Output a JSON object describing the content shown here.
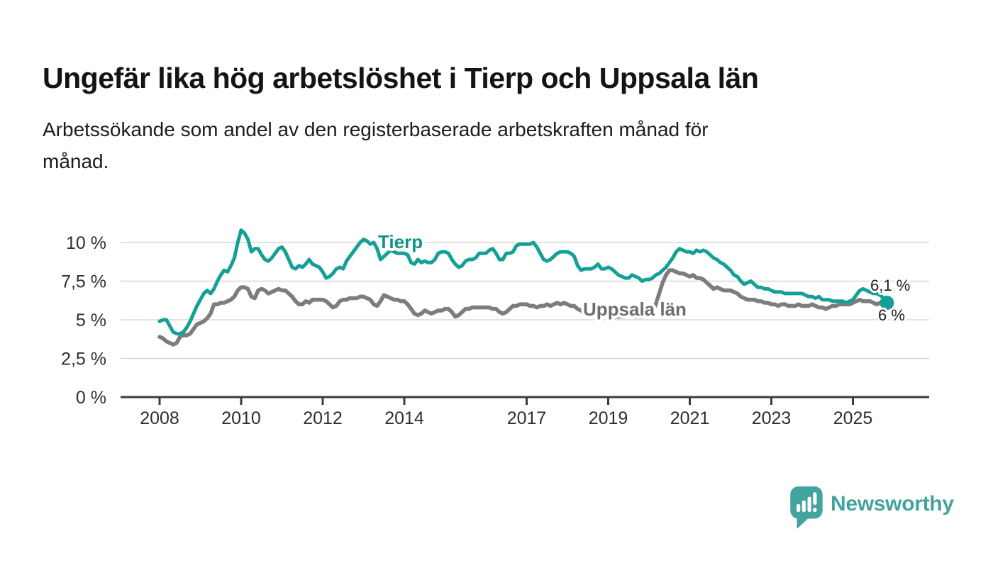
{
  "chart_data": {
    "type": "line",
    "title": "Ungefär lika hög arbetslöshet i Tierp och Uppsala län",
    "subtitle_lines": [
      "Arbetssökande som andel av den registerbaserade arbetskraften månad för",
      "månad."
    ],
    "x_unit": "monthly values, Jan 2008 – late 2025",
    "x_start_year": 2008,
    "x_samples_per_year": 12,
    "xlim": [
      2007.05,
      2026.9
    ],
    "ylim": [
      0,
      11
    ],
    "grid": "horizontal",
    "x_ticks": [
      2008,
      2010,
      2012,
      2014,
      2017,
      2019,
      2021,
      2023,
      2025
    ],
    "y_ticks": [
      0,
      2.5,
      5,
      7.5,
      10
    ],
    "y_tick_labels": [
      "0 %",
      "2,5 %",
      "5 %",
      "7,5 %",
      "10 %"
    ],
    "legend": "inline series labels",
    "series": [
      {
        "name": "Tierp",
        "color": "#14A096",
        "label_color": "#0D9588",
        "end_label": "6,1 %",
        "end_value": 6.1,
        "values": [
          4.9,
          5.0,
          5.0,
          4.6,
          4.2,
          4.1,
          4.1,
          4.2,
          4.5,
          4.9,
          5.4,
          5.9,
          6.3,
          6.7,
          6.9,
          6.7,
          7.0,
          7.5,
          7.9,
          8.2,
          8.1,
          8.5,
          9.0,
          10.0,
          10.8,
          10.6,
          10.2,
          9.4,
          9.6,
          9.6,
          9.2,
          8.9,
          8.8,
          9.0,
          9.3,
          9.6,
          9.7,
          9.4,
          8.9,
          8.4,
          8.3,
          8.5,
          8.4,
          8.6,
          8.9,
          8.6,
          8.5,
          8.4,
          8.1,
          7.7,
          7.8,
          8.0,
          8.3,
          8.4,
          8.3,
          8.8,
          9.1,
          9.4,
          9.7,
          10.0,
          10.2,
          10.1,
          9.9,
          10.0,
          9.6,
          8.9,
          9.1,
          9.3,
          9.5,
          9.4,
          9.3,
          9.3,
          9.3,
          9.2,
          8.7,
          8.6,
          8.9,
          8.7,
          8.8,
          8.7,
          8.7,
          8.9,
          9.3,
          9.4,
          9.4,
          9.3,
          8.9,
          8.6,
          8.4,
          8.5,
          8.8,
          8.9,
          8.9,
          9.0,
          9.3,
          9.3,
          9.3,
          9.5,
          9.6,
          9.3,
          8.9,
          8.9,
          9.3,
          9.3,
          9.4,
          9.8,
          9.9,
          9.9,
          9.9,
          9.9,
          10.0,
          9.7,
          9.3,
          8.9,
          8.8,
          8.9,
          9.1,
          9.3,
          9.4,
          9.4,
          9.4,
          9.3,
          9.1,
          8.5,
          8.2,
          8.3,
          8.3,
          8.3,
          8.4,
          8.6,
          8.3,
          8.3,
          8.4,
          8.3,
          8.1,
          7.9,
          7.8,
          7.7,
          7.7,
          7.9,
          7.8,
          7.7,
          7.5,
          7.6,
          7.6,
          7.7,
          7.9,
          8.0,
          8.2,
          8.4,
          8.7,
          9.0,
          9.4,
          9.6,
          9.5,
          9.4,
          9.4,
          9.3,
          9.5,
          9.4,
          9.5,
          9.4,
          9.2,
          9.0,
          8.9,
          8.7,
          8.6,
          8.4,
          8.2,
          7.9,
          7.8,
          7.5,
          7.3,
          7.4,
          7.5,
          7.3,
          7.1,
          7.1,
          7.0,
          7.0,
          6.9,
          6.8,
          6.8,
          6.8,
          6.7,
          6.7,
          6.7,
          6.7,
          6.7,
          6.7,
          6.6,
          6.5,
          6.5,
          6.4,
          6.5,
          6.3,
          6.3,
          6.3,
          6.2,
          6.2,
          6.2,
          6.2,
          6.1,
          6.2,
          6.3,
          6.6,
          6.9,
          7.0,
          6.9,
          6.8,
          6.7,
          6.7,
          6.6,
          6.4,
          6.1
        ]
      },
      {
        "name": "Uppsala län",
        "color": "#7D7D7D",
        "label_color": "#6D6D6D",
        "end_label": "6 %",
        "end_value": 6.0,
        "values": [
          3.9,
          3.8,
          3.6,
          3.5,
          3.4,
          3.5,
          3.9,
          4.0,
          4.0,
          4.1,
          4.4,
          4.7,
          4.8,
          4.9,
          5.1,
          5.4,
          6.0,
          6.0,
          6.1,
          6.1,
          6.2,
          6.3,
          6.5,
          6.9,
          7.1,
          7.1,
          7.0,
          6.5,
          6.4,
          6.9,
          7.0,
          6.9,
          6.7,
          6.8,
          6.9,
          7.0,
          6.9,
          6.9,
          6.7,
          6.5,
          6.2,
          6.0,
          6.0,
          6.2,
          6.1,
          6.3,
          6.3,
          6.3,
          6.3,
          6.2,
          6.0,
          5.8,
          5.9,
          6.2,
          6.3,
          6.3,
          6.4,
          6.4,
          6.4,
          6.5,
          6.5,
          6.4,
          6.3,
          6.0,
          5.9,
          6.2,
          6.6,
          6.5,
          6.4,
          6.3,
          6.3,
          6.2,
          6.2,
          6.0,
          5.7,
          5.4,
          5.3,
          5.4,
          5.6,
          5.5,
          5.4,
          5.5,
          5.6,
          5.6,
          5.7,
          5.7,
          5.5,
          5.2,
          5.3,
          5.5,
          5.7,
          5.7,
          5.8,
          5.8,
          5.8,
          5.8,
          5.8,
          5.8,
          5.7,
          5.7,
          5.5,
          5.4,
          5.5,
          5.7,
          5.9,
          5.9,
          6.0,
          6.0,
          6.0,
          5.9,
          5.9,
          5.8,
          5.9,
          5.9,
          6.0,
          5.9,
          6.0,
          6.1,
          6.0,
          6.1,
          6.0,
          5.9,
          5.9,
          5.7,
          5.6,
          5.5,
          5.4,
          5.3,
          5.3,
          5.2,
          5.3,
          5.3,
          5.3,
          5.3,
          5.2,
          5.2,
          5.2,
          5.2,
          5.3,
          5.3,
          5.2,
          5.2,
          5.2,
          5.3,
          5.4,
          5.5,
          6.0,
          6.7,
          7.4,
          7.9,
          8.2,
          8.2,
          8.1,
          8.0,
          8.0,
          7.9,
          7.8,
          7.9,
          7.7,
          7.7,
          7.6,
          7.4,
          7.2,
          7.0,
          7.1,
          7.0,
          6.9,
          6.9,
          6.9,
          6.8,
          6.7,
          6.5,
          6.4,
          6.3,
          6.3,
          6.3,
          6.2,
          6.2,
          6.1,
          6.1,
          6.0,
          6.0,
          5.9,
          6.0,
          6.0,
          5.9,
          5.9,
          5.9,
          6.0,
          5.9,
          5.9,
          5.9,
          6.0,
          5.9,
          5.8,
          5.8,
          5.7,
          5.8,
          5.9,
          5.9,
          6.0,
          6.0,
          6.0,
          6.0,
          6.1,
          6.2,
          6.3,
          6.2,
          6.2,
          6.2,
          6.1,
          6.0,
          6.1,
          6.1,
          6.0
        ]
      }
    ]
  },
  "footer": {
    "brand": "Newsworthy",
    "logo": "newsworthy-speech-bubble-bar-chart-icon"
  }
}
